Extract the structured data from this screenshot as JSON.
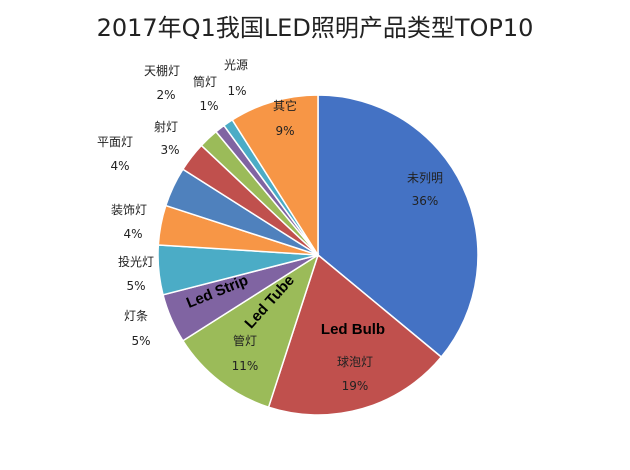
{
  "chart_data": {
    "type": "pie",
    "title": "2017年Q1我国LED照明产品类型TOP10",
    "slices": [
      {
        "label": "未列明",
        "value_label": "36%",
        "value": 36,
        "color": "#4472C4"
      },
      {
        "label": "球泡灯",
        "value_label": "19%",
        "value": 19,
        "color": "#C0504D"
      },
      {
        "label": "管灯",
        "value_label": "11%",
        "value": 11,
        "color": "#9BBB59"
      },
      {
        "label": "灯条",
        "value_label": "5%",
        "value": 5,
        "color": "#8064A2"
      },
      {
        "label": "投光灯",
        "value_label": "5%",
        "value": 5,
        "color": "#4BACC6"
      },
      {
        "label": "装饰灯",
        "value_label": "4%",
        "value": 4,
        "color": "#F79646"
      },
      {
        "label": "平面灯",
        "value_label": "4%",
        "value": 4,
        "color": "#4F81BD"
      },
      {
        "label": "射灯",
        "value_label": "3%",
        "value": 3,
        "color": "#C0504D"
      },
      {
        "label": "天棚灯",
        "value_label": "2%",
        "value": 2,
        "color": "#9BBB59"
      },
      {
        "label": "筒灯",
        "value_label": "1%",
        "value": 1,
        "color": "#8064A2"
      },
      {
        "label": "光源",
        "value_label": "1%",
        "value": 1,
        "color": "#4BACC6"
      },
      {
        "label": "其它",
        "value_label": "9%",
        "value": 9,
        "color": "#F79646"
      }
    ],
    "annotations": [
      {
        "text": "Led Bulb",
        "slice": "球泡灯"
      },
      {
        "text": "Led Tube",
        "slice": "管灯"
      },
      {
        "text": "Led Strip",
        "slice": "灯条"
      }
    ]
  }
}
